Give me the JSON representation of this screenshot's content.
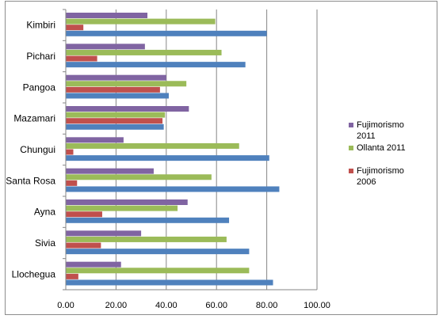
{
  "chart_data": {
    "type": "bar",
    "orientation": "horizontal",
    "categories": [
      "Kimbiri",
      "Pichari",
      "Pangoa",
      "Mazamari",
      "Chungui",
      "Santa Rosa",
      "Ayna",
      "Sivia",
      "Llochegua"
    ],
    "series": [
      {
        "name": "Fujimorismo 2011",
        "color": "#8064a2",
        "values": [
          32.5,
          31.5,
          40.0,
          49.0,
          23.0,
          35.0,
          48.5,
          30.0,
          22.0
        ],
        "legend": true
      },
      {
        "name": "Ollanta 2011",
        "color": "#9bbb59",
        "values": [
          59.5,
          62.0,
          48.0,
          39.5,
          69.0,
          58.0,
          44.5,
          64.0,
          73.0
        ],
        "legend": true
      },
      {
        "name": "Fujimorismo 2006",
        "color": "#c0504d",
        "values": [
          7.0,
          12.5,
          37.5,
          38.5,
          3.0,
          4.5,
          14.5,
          14.0,
          5.0
        ],
        "legend": true
      },
      {
        "name": "",
        "color": "#4f81bd",
        "values": [
          80.0,
          71.5,
          41.0,
          39.0,
          81.0,
          85.0,
          65.0,
          73.0,
          82.5
        ],
        "legend": false
      }
    ],
    "xlim": [
      0,
      100
    ],
    "xticks": [
      "0.00",
      "20.00",
      "40.00",
      "60.00",
      "80.00",
      "100.00"
    ],
    "grid": true,
    "legend_position": "right"
  }
}
